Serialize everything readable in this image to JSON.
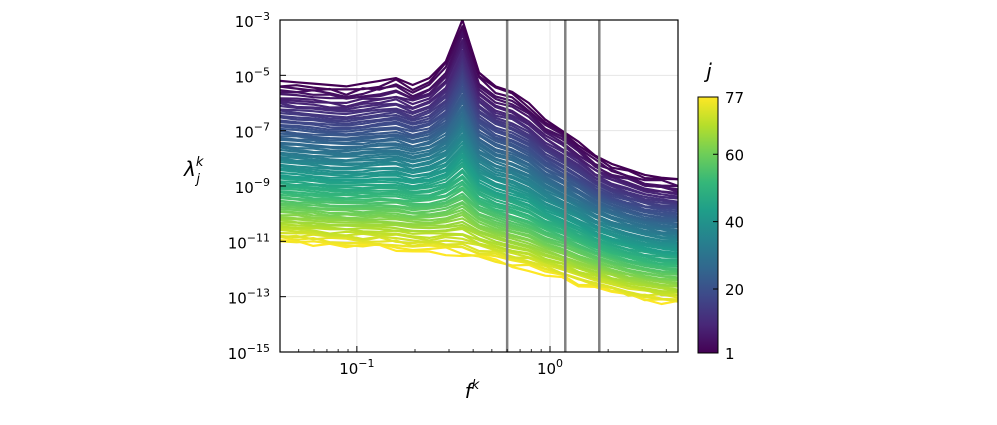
{
  "chart_data": {
    "type": "line",
    "xscale": "log",
    "yscale": "log",
    "xlim": [
      0.04,
      4.6
    ],
    "ylim": [
      1e-15,
      0.001
    ],
    "x_ticks": [
      {
        "value": 0.1,
        "base": "10",
        "exp": "−1"
      },
      {
        "value": 1,
        "base": "10",
        "exp": "0"
      }
    ],
    "y_ticks": [
      {
        "value": 0.001,
        "base": "10",
        "exp": "−3"
      },
      {
        "value": 1e-05,
        "base": "10",
        "exp": "−5"
      },
      {
        "value": 1e-07,
        "base": "10",
        "exp": "−7"
      },
      {
        "value": 1e-09,
        "base": "10",
        "exp": "−9"
      },
      {
        "value": 1e-11,
        "base": "10",
        "exp": "−11"
      },
      {
        "value": 1e-13,
        "base": "10",
        "exp": "−13"
      },
      {
        "value": 1e-15,
        "base": "10",
        "exp": "−15"
      }
    ],
    "xlabel": {
      "base": "f",
      "sup": "k"
    },
    "ylabel": {
      "base": "λ",
      "sub": "j",
      "sup": "k"
    },
    "grid": true,
    "vertical_lines": [
      0.6,
      1.2,
      1.8
    ],
    "series_index": {
      "name": "j",
      "min": 1,
      "max": 77
    },
    "colormap": "viridis",
    "colorbar": {
      "title": "j",
      "ticks": [
        1,
        20,
        40,
        60,
        77
      ],
      "stops": [
        "#440154",
        "#482878",
        "#3e4989",
        "#31688e",
        "#26828e",
        "#1f9e89",
        "#35b779",
        "#6ece58",
        "#b5de2b",
        "#fde725"
      ]
    },
    "series_envelope": {
      "first_log10": [
        -5.2,
        -5.25,
        -5.3,
        -5.35,
        -5.4,
        -5.3,
        -5.2,
        -5.1,
        -5.35,
        -5.1,
        -4.5,
        -3.0,
        -4.9,
        -5.4,
        -5.6,
        -6.0,
        -6.6,
        -7.0,
        -7.4,
        -7.9,
        -8.2,
        -8.4,
        -8.6,
        -8.7,
        -8.75
      ],
      "last_log10": [
        -11.0,
        -11.05,
        -11.1,
        -11.15,
        -11.15,
        -11.2,
        -11.2,
        -11.25,
        -11.3,
        -11.35,
        -11.4,
        -11.5,
        -11.6,
        -11.75,
        -11.9,
        -12.0,
        -12.2,
        -12.35,
        -12.55,
        -12.7,
        -12.85,
        -13.0,
        -13.1,
        -13.2,
        -13.25
      ],
      "x_start": 0.04,
      "x_end": 4.6,
      "n_points": 25
    }
  }
}
